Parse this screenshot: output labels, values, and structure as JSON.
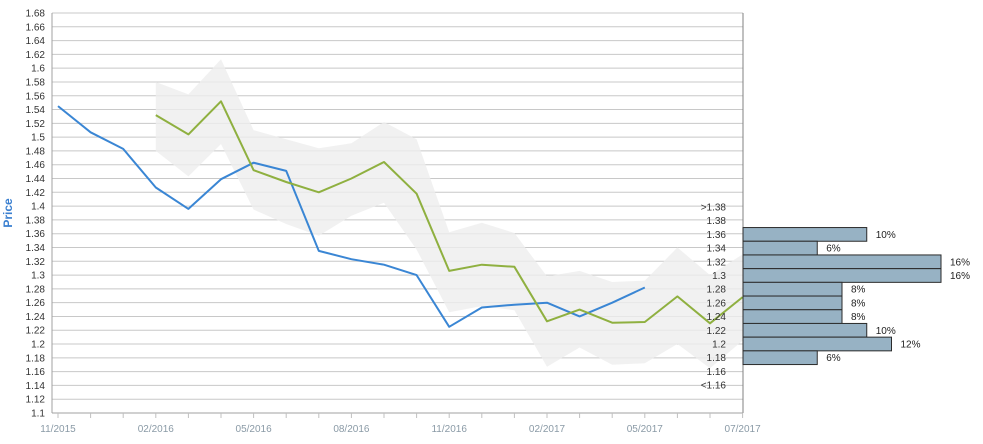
{
  "chart_data": {
    "type": "line",
    "ylabel": "Price",
    "ylim": [
      1.1,
      1.68
    ],
    "y_ticks": [
      "1.1",
      "1.12",
      "1.14",
      "1.16",
      "1.18",
      "1.2",
      "1.22",
      "1.24",
      "1.26",
      "1.28",
      "1.3",
      "1.32",
      "1.34",
      "1.36",
      "1.38",
      "1.4",
      "1.42",
      "1.44",
      "1.46",
      "1.48",
      "1.5",
      "1.52",
      "1.54",
      "1.56",
      "1.58",
      "1.6",
      "1.62",
      "1.64",
      "1.66",
      "1.68"
    ],
    "x_ticks": [
      "11/2015",
      "02/2016",
      "05/2016",
      "08/2016",
      "11/2016",
      "02/2017",
      "05/2017",
      "07/2017"
    ],
    "grid": true,
    "series": [
      {
        "color": "#3a86d4",
        "points": [
          [
            "2015-11",
            1.545
          ],
          [
            "2015-12",
            1.507
          ],
          [
            "2016-01",
            1.483
          ],
          [
            "2016-02",
            1.427
          ],
          [
            "2016-03",
            1.396
          ],
          [
            "2016-04",
            1.439
          ],
          [
            "2016-05",
            1.463
          ],
          [
            "2016-06",
            1.451
          ],
          [
            "2016-07",
            1.335
          ],
          [
            "2016-08",
            1.323
          ],
          [
            "2016-09",
            1.315
          ],
          [
            "2016-10",
            1.3
          ],
          [
            "2016-11",
            1.225
          ],
          [
            "2016-12",
            1.253
          ],
          [
            "2017-01",
            1.257
          ],
          [
            "2017-02",
            1.26
          ],
          [
            "2017-03",
            1.24
          ],
          [
            "2017-04",
            1.26
          ],
          [
            "2017-05",
            1.282
          ]
        ]
      },
      {
        "color": "#8fb040",
        "points": [
          [
            "2016-02",
            1.532
          ],
          [
            "2016-03",
            1.504
          ],
          [
            "2016-04",
            1.552
          ],
          [
            "2016-05",
            1.452
          ],
          [
            "2016-06",
            1.435
          ],
          [
            "2016-07",
            1.42
          ],
          [
            "2016-08",
            1.44
          ],
          [
            "2016-09",
            1.464
          ],
          [
            "2016-10",
            1.418
          ],
          [
            "2016-11",
            1.306
          ],
          [
            "2016-12",
            1.315
          ],
          [
            "2017-01",
            1.312
          ],
          [
            "2017-02",
            1.233
          ],
          [
            "2017-03",
            1.25
          ],
          [
            "2017-04",
            1.231
          ],
          [
            "2017-05",
            1.232
          ],
          [
            "2017-06",
            1.269
          ],
          [
            "2017-07",
            1.23
          ],
          [
            "2017-08",
            1.268
          ]
        ]
      }
    ],
    "band": {
      "color": "#ededed",
      "points": [
        [
          "2016-02",
          1.58,
          1.48
        ],
        [
          "2016-03",
          1.562,
          1.443
        ],
        [
          "2016-04",
          1.613,
          1.49
        ],
        [
          "2016-05",
          1.51,
          1.395
        ],
        [
          "2016-06",
          1.497,
          1.374
        ],
        [
          "2016-07",
          1.484,
          1.357
        ],
        [
          "2016-08",
          1.491,
          1.386
        ],
        [
          "2016-09",
          1.522,
          1.405
        ],
        [
          "2016-10",
          1.497,
          1.337
        ],
        [
          "2016-11",
          1.362,
          1.246
        ],
        [
          "2016-12",
          1.376,
          1.255
        ],
        [
          "2017-01",
          1.361,
          1.249
        ],
        [
          "2017-02",
          1.298,
          1.167
        ],
        [
          "2017-03",
          1.306,
          1.195
        ],
        [
          "2017-04",
          1.29,
          1.17
        ],
        [
          "2017-05",
          1.292,
          1.172
        ],
        [
          "2017-06",
          1.34,
          1.2
        ],
        [
          "2017-07",
          1.3,
          1.165
        ],
        [
          "2017-08",
          1.33,
          1.205
        ]
      ]
    },
    "distribution": {
      "bar_color": "#97b2c4",
      "bins": [
        {
          "label": ">1.38",
          "value": null,
          "pct_label": ""
        },
        {
          "label": "1.38",
          "value": null,
          "pct_label": ""
        },
        {
          "label": "1.36",
          "value": 10,
          "pct_label": "10%"
        },
        {
          "label": "1.34",
          "value": 6,
          "pct_label": "6%"
        },
        {
          "label": "1.32",
          "value": 16,
          "pct_label": "16%"
        },
        {
          "label": "1.3",
          "value": 16,
          "pct_label": "16%"
        },
        {
          "label": "1.28",
          "value": 8,
          "pct_label": "8%"
        },
        {
          "label": "1.26",
          "value": 8,
          "pct_label": "8%"
        },
        {
          "label": "1.24",
          "value": 8,
          "pct_label": "8%"
        },
        {
          "label": "1.22",
          "value": 10,
          "pct_label": "10%"
        },
        {
          "label": "1.2",
          "value": 12,
          "pct_label": "12%"
        },
        {
          "label": "1.18",
          "value": 6,
          "pct_label": "6%"
        },
        {
          "label": "1.16",
          "value": null,
          "pct_label": ""
        },
        {
          "label": "<1.16",
          "value": null,
          "pct_label": ""
        }
      ]
    }
  }
}
